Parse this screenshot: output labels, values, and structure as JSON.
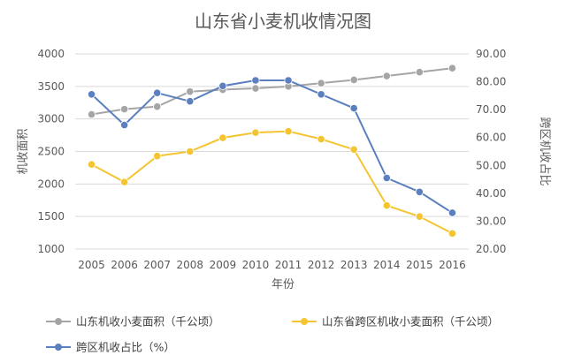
{
  "chart_data": {
    "type": "line",
    "title": "山东省小麦机收情况图",
    "xlabel": "年份",
    "ylabel": "机收面积",
    "y2label": "跨区机收占比",
    "categories": [
      "2005",
      "2006",
      "2007",
      "2008",
      "2009",
      "2010",
      "2011",
      "2012",
      "2013",
      "2014",
      "2015",
      "2016"
    ],
    "ylim": [
      1000,
      4000
    ],
    "y2lim": [
      20,
      90
    ],
    "yticks": [
      "1000",
      "1500",
      "2000",
      "2500",
      "3000",
      "3500",
      "4000"
    ],
    "y2ticks": [
      "20.00",
      "30.00",
      "40.00",
      "50.00",
      "60.00",
      "70.00",
      "80.00",
      "90.00"
    ],
    "grid": true,
    "legend_position": "bottom",
    "series": [
      {
        "name": "山东机收小麦面积（千公顷）",
        "axis": "left",
        "color": "#a5a5a5",
        "values": [
          3070,
          3150,
          3190,
          3420,
          3450,
          3470,
          3500,
          3550,
          3600,
          3660,
          3720,
          3780
        ]
      },
      {
        "name": "山东省跨区机收小麦面积（千公顷）",
        "axis": "left",
        "color": "#f4c431",
        "values": [
          2300,
          2030,
          2430,
          2500,
          2710,
          2790,
          2810,
          2690,
          2530,
          1670,
          1500,
          1240
        ]
      },
      {
        "name": "跨区机收占比（%）",
        "axis": "right",
        "color": "#5b7fbf",
        "values": [
          75.5,
          64.5,
          76.0,
          73.0,
          78.5,
          80.5,
          80.5,
          75.5,
          70.5,
          45.5,
          40.5,
          33.0
        ]
      }
    ]
  }
}
